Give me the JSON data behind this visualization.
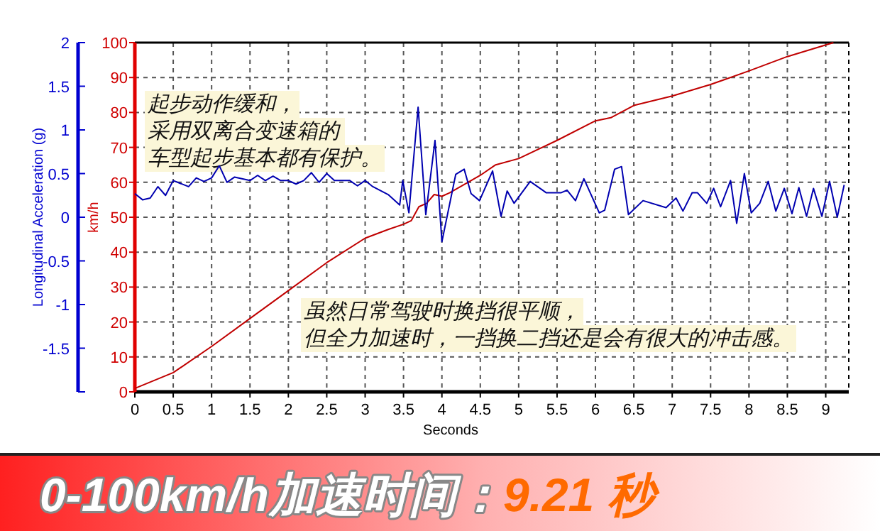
{
  "chart_data": {
    "type": "line",
    "title": "0-100km/h加速时间：9.21 秒",
    "xlabel": "Seconds",
    "ylabel": "km/h",
    "y2label": "Longitudinal Acceleration (g)",
    "annotations": [
      "起步动作缓和，",
      "采用双离合变速箱的",
      "车型起步基本都有保护。",
      "虽然日常驾驶时换挡很平顺，",
      "但全力加速时，一挡换二挡还是会有很大的冲击感。"
    ],
    "xlim": [
      0,
      9.3
    ],
    "xticks": [
      0,
      0.5,
      1,
      1.5,
      2,
      2.5,
      3,
      3.5,
      4,
      4.5,
      5,
      5.5,
      6,
      6.5,
      7,
      7.5,
      8,
      8.5,
      9
    ],
    "ylim": [
      0,
      100
    ],
    "yticks": [
      0,
      10,
      20,
      30,
      40,
      50,
      60,
      70,
      80,
      90,
      100
    ],
    "y2lim": [
      -2,
      2
    ],
    "y2ticks": [
      {
        "value": -2,
        "label": null
      },
      -1.5,
      -1,
      -0.5,
      0,
      0.5,
      1,
      1.5,
      2
    ],
    "grid": true,
    "line_style": "solid",
    "marker": "none",
    "series": [
      {
        "color": "#c00000",
        "x": [
          0,
          0.5,
          1,
          1.5,
          2,
          2.5,
          3,
          3.3,
          3.5,
          3.6,
          3.7,
          3.8,
          3.9,
          4,
          4.1,
          4.5,
          4.7,
          5,
          5.5,
          6,
          6.2,
          6.5,
          7,
          7.5,
          8,
          8.5,
          9.1
        ],
        "values": [
          1,
          5.5,
          13,
          21,
          29,
          37,
          44,
          46.5,
          48,
          49,
          53,
          54,
          56.5,
          56,
          57,
          62,
          65,
          66.8,
          72,
          77.6,
          78.5,
          82,
          84.7,
          88,
          91.9,
          96,
          100
        ]
      },
      {
        "axis": "y2",
        "color": "#0000b0",
        "x": [
          0,
          0.1,
          0.2,
          0.3,
          0.4,
          0.5,
          0.7,
          0.8,
          0.9,
          1,
          1.1,
          1.2,
          1.3,
          1.5,
          1.6,
          1.7,
          1.8,
          1.9,
          2,
          2.1,
          2.2,
          2.3,
          2.4,
          2.5,
          2.6,
          2.8,
          2.9,
          3,
          3.1,
          3.3,
          3.45,
          3.49,
          3.57,
          3.69,
          3.79,
          3.91,
          4,
          4.18,
          4.29,
          4.38,
          4.49,
          4.66,
          4.77,
          4.85,
          4.94,
          5.15,
          5.36,
          5.55,
          5.63,
          5.74,
          5.85,
          6.05,
          6.12,
          6.25,
          6.34,
          6.43,
          6.62,
          6.92,
          7.05,
          7.14,
          7.26,
          7.33,
          7.45,
          7.54,
          7.63,
          7.76,
          7.84,
          7.94,
          8.03,
          8.14,
          8.25,
          8.35,
          8.46,
          8.56,
          8.65,
          8.75,
          8.84,
          8.95,
          9.05,
          9.15,
          9.24
        ],
        "values": [
          0.27,
          0.2,
          0.22,
          0.35,
          0.25,
          0.42,
          0.35,
          0.45,
          0.41,
          0.45,
          0.59,
          0.4,
          0.46,
          0.42,
          0.48,
          0.42,
          0.47,
          0.42,
          0.42,
          0.38,
          0.42,
          0.51,
          0.4,
          0.5,
          0.42,
          0.42,
          0.36,
          0.42,
          0.35,
          0.26,
          0.14,
          0.42,
          0.05,
          1.26,
          0.03,
          0.88,
          -0.28,
          0.49,
          0.55,
          0.27,
          0.19,
          0.53,
          0.01,
          0.3,
          0.16,
          0.41,
          0.28,
          0.28,
          0.31,
          0.19,
          0.44,
          0.05,
          0.08,
          0.55,
          0.58,
          0.03,
          0.19,
          0.11,
          0.22,
          0.07,
          0.28,
          0.28,
          0.16,
          0.33,
          0.12,
          0.42,
          -0.07,
          0.5,
          0.05,
          0.16,
          0.41,
          0.07,
          0.33,
          0.04,
          0.34,
          0.01,
          0.33,
          0.01,
          0.41,
          0,
          0.37
        ]
      }
    ]
  }
}
